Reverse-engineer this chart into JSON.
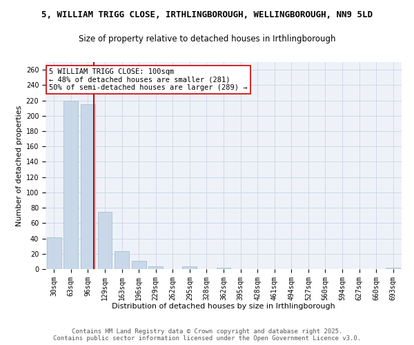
{
  "title1": "5, WILLIAM TRIGG CLOSE, IRTHLINGBOROUGH, WELLINGBOROUGH, NN9 5LD",
  "title2": "Size of property relative to detached houses in Irthlingborough",
  "xlabel": "Distribution of detached houses by size in Irthlingborough",
  "ylabel": "Number of detached properties",
  "categories": [
    "30sqm",
    "63sqm",
    "96sqm",
    "129sqm",
    "163sqm",
    "196sqm",
    "229sqm",
    "262sqm",
    "295sqm",
    "328sqm",
    "362sqm",
    "395sqm",
    "428sqm",
    "461sqm",
    "494sqm",
    "527sqm",
    "560sqm",
    "594sqm",
    "627sqm",
    "660sqm",
    "693sqm"
  ],
  "values": [
    41,
    220,
    215,
    75,
    23,
    11,
    4,
    0,
    4,
    0,
    2,
    0,
    0,
    0,
    0,
    0,
    0,
    0,
    0,
    0,
    2
  ],
  "bar_color": "#c8d8e8",
  "bar_edge_color": "#a0b8cc",
  "grid_color": "#d0d8e8",
  "background_color": "#eef2f8",
  "vline_bin": 2,
  "vline_color": "#cc0000",
  "annotation_text": "5 WILLIAM TRIGG CLOSE: 100sqm\n← 48% of detached houses are smaller (281)\n50% of semi-detached houses are larger (289) →",
  "annotation_box_color": "#ffffff",
  "annotation_box_edge": "#cc0000",
  "ylim": [
    0,
    270
  ],
  "yticks": [
    0,
    20,
    40,
    60,
    80,
    100,
    120,
    140,
    160,
    180,
    200,
    220,
    240,
    260
  ],
  "footer_text": "Contains HM Land Registry data © Crown copyright and database right 2025.\nContains public sector information licensed under the Open Government Licence v3.0.",
  "title1_fontsize": 9,
  "title2_fontsize": 8.5,
  "xlabel_fontsize": 8,
  "ylabel_fontsize": 8,
  "tick_fontsize": 7,
  "annotation_fontsize": 7.5,
  "footer_fontsize": 6.5
}
